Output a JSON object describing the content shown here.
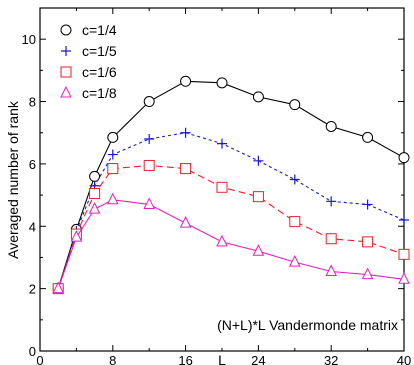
{
  "chart_data": {
    "type": "line",
    "title": "",
    "xlabel": "L",
    "ylabel": "Averaged number of rank",
    "xlim": [
      0,
      40
    ],
    "ylim": [
      0,
      11
    ],
    "xticks": [
      0,
      8,
      16,
      24,
      32,
      40
    ],
    "yticks": [
      0,
      2,
      4,
      6,
      8,
      10
    ],
    "grid": false,
    "legend_position": "top-left",
    "annotation": "(N+L)*L Vandermonde matrix",
    "series": [
      {
        "name": "c=1/4",
        "color": "#000000",
        "marker": "circle",
        "line_style": "solid",
        "x": [
          2,
          4,
          6,
          8,
          12,
          16,
          20,
          24,
          28,
          32,
          36,
          40
        ],
        "y": [
          2.0,
          3.9,
          5.6,
          6.85,
          8.0,
          8.65,
          8.6,
          8.15,
          7.9,
          7.2,
          6.85,
          6.2
        ]
      },
      {
        "name": "c=1/5",
        "color": "#1a1acc",
        "marker": "plus",
        "line_style": "dotted",
        "x": [
          2,
          4,
          6,
          8,
          12,
          16,
          20,
          24,
          28,
          32,
          36,
          40
        ],
        "y": [
          2.0,
          3.85,
          5.3,
          6.3,
          6.8,
          7.0,
          6.65,
          6.1,
          5.5,
          4.8,
          4.7,
          4.2
        ]
      },
      {
        "name": "c=1/6",
        "color": "#e8202a",
        "marker": "square",
        "line_style": "dashed",
        "x": [
          2,
          4,
          6,
          8,
          12,
          16,
          20,
          24,
          28,
          32,
          36,
          40
        ],
        "y": [
          2.0,
          3.75,
          5.05,
          5.85,
          5.95,
          5.85,
          5.25,
          4.95,
          4.15,
          3.6,
          3.5,
          3.1
        ]
      },
      {
        "name": "c=1/8",
        "color": "#e020c0",
        "marker": "triangle",
        "line_style": "solid",
        "x": [
          2,
          4,
          6,
          8,
          12,
          16,
          20,
          24,
          28,
          32,
          36,
          40
        ],
        "y": [
          2.0,
          3.65,
          4.55,
          4.85,
          4.7,
          4.1,
          3.5,
          3.2,
          2.85,
          2.55,
          2.45,
          2.3
        ]
      }
    ]
  }
}
